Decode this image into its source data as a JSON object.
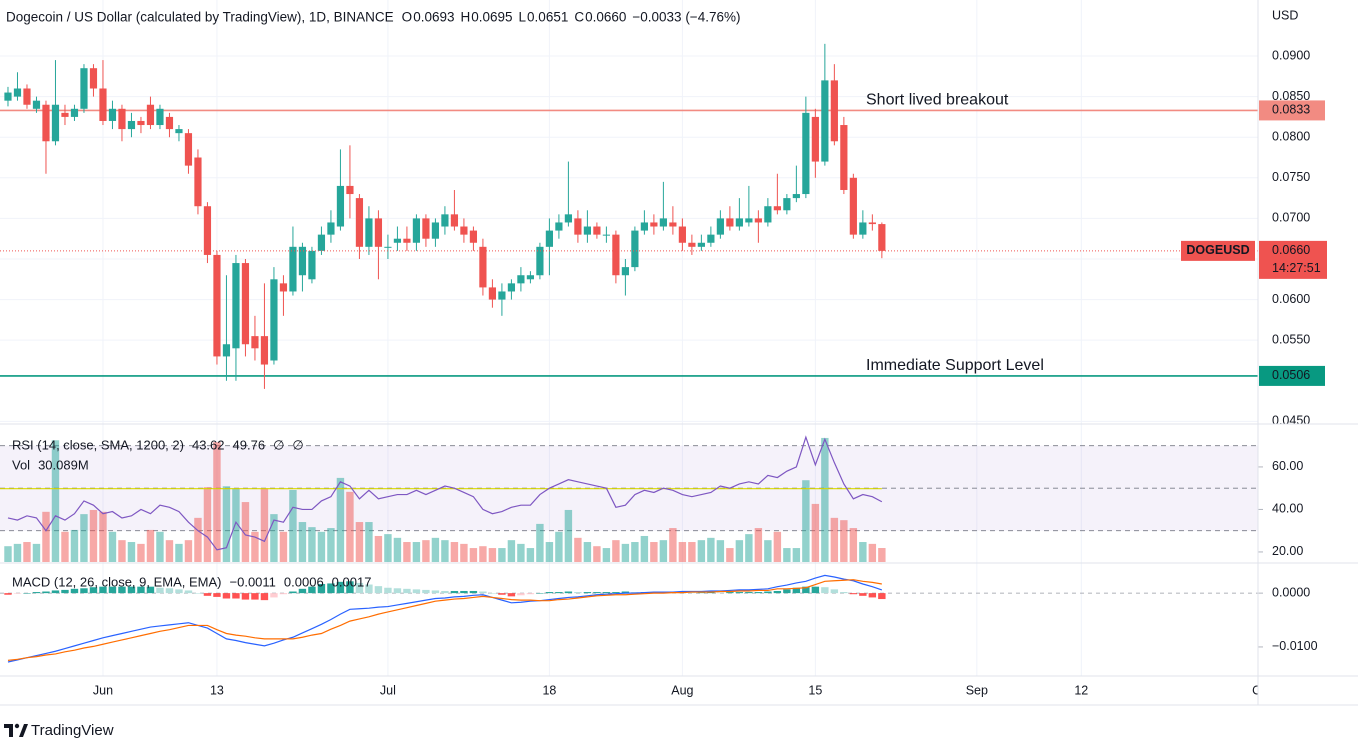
{
  "header": {
    "title": "Dogecoin / US Dollar (calculated by TradingView), 1D, BINANCE",
    "o": "O",
    "o_value": "0.0693",
    "h": "H",
    "h_value": "0.0695",
    "l": "L",
    "l_value": "0.0651",
    "c": "C",
    "c_value": "0.0660",
    "change": "−0.0033 (−4.76%)"
  },
  "logo": "TradingView",
  "chart_data": {
    "type": "candlestick",
    "currency": "USD",
    "x": [
      "May 22",
      "May 23",
      "May 24",
      "May 25",
      "May 26",
      "May 27",
      "May 28",
      "May 29",
      "May 30",
      "May 31",
      "Jun 1",
      "Jun 2",
      "Jun 3",
      "Jun 4",
      "Jun 5",
      "Jun 6",
      "Jun 7",
      "Jun 8",
      "Jun 9",
      "Jun 10",
      "Jun 11",
      "Jun 12",
      "Jun 13",
      "Jun 14",
      "Jun 15",
      "Jun 16",
      "Jun 17",
      "Jun 18",
      "Jun 19",
      "Jun 20",
      "Jun 21",
      "Jun 22",
      "Jun 23",
      "Jun 24",
      "Jun 25",
      "Jun 26",
      "Jun 27",
      "Jun 28",
      "Jun 29",
      "Jun 30",
      "Jul 1",
      "Jul 2",
      "Jul 3",
      "Jul 4",
      "Jul 5",
      "Jul 6",
      "Jul 7",
      "Jul 8",
      "Jul 9",
      "Jul 10",
      "Jul 11",
      "Jul 12",
      "Jul 13",
      "Jul 14",
      "Jul 15",
      "Jul 16",
      "Jul 17",
      "Jul 18",
      "Jul 19",
      "Jul 20",
      "Jul 21",
      "Jul 22",
      "Jul 23",
      "Jul 24",
      "Jul 25",
      "Jul 26",
      "Jul 27",
      "Jul 28",
      "Jul 29",
      "Jul 30",
      "Jul 31",
      "Aug 1",
      "Aug 2",
      "Aug 3",
      "Aug 4",
      "Aug 5",
      "Aug 6",
      "Aug 7",
      "Aug 8",
      "Aug 9",
      "Aug 10",
      "Aug 11",
      "Aug 12",
      "Aug 13",
      "Aug 14",
      "Aug 15",
      "Aug 16",
      "Aug 17",
      "Aug 18",
      "Aug 19",
      "Aug 20",
      "Aug 21",
      "Aug 22"
    ],
    "open": [
      0.0845,
      0.085,
      0.086,
      0.0835,
      0.084,
      0.0795,
      0.083,
      0.0825,
      0.0835,
      0.0885,
      0.086,
      0.082,
      0.0835,
      0.081,
      0.082,
      0.084,
      0.0815,
      0.0825,
      0.0805,
      0.0805,
      0.0775,
      0.0715,
      0.0655,
      0.053,
      0.054,
      0.0645,
      0.0555,
      0.0555,
      0.0525,
      0.062,
      0.061,
      0.063,
      0.0625,
      0.066,
      0.068,
      0.069,
      0.074,
      0.0725,
      0.0665,
      0.07,
      0.0665,
      0.067,
      0.0675,
      0.067,
      0.07,
      0.0675,
      0.069,
      0.0705,
      0.069,
      0.0685,
      0.0665,
      0.0615,
      0.06,
      0.061,
      0.062,
      0.0625,
      0.063,
      0.0665,
      0.0685,
      0.0695,
      0.07,
      0.068,
      0.069,
      0.068,
      0.068,
      0.063,
      0.064,
      0.0685,
      0.0695,
      0.069,
      0.0695,
      0.069,
      0.067,
      0.0665,
      0.067,
      0.068,
      0.07,
      0.069,
      0.0695,
      0.07,
      0.0695,
      0.0715,
      0.071,
      0.0725,
      0.073,
      0.0825,
      0.077,
      0.087,
      0.0815,
      0.075,
      0.068,
      0.0695,
      0.0693
    ],
    "high": [
      0.0862,
      0.088,
      0.0865,
      0.085,
      0.0845,
      0.0895,
      0.084,
      0.084,
      0.089,
      0.089,
      0.0895,
      0.0845,
      0.084,
      0.083,
      0.0825,
      0.085,
      0.084,
      0.083,
      0.0815,
      0.081,
      0.0785,
      0.072,
      0.066,
      0.063,
      0.0655,
      0.065,
      0.058,
      0.062,
      0.064,
      0.063,
      0.069,
      0.067,
      0.0665,
      0.069,
      0.071,
      0.0785,
      0.079,
      0.073,
      0.0715,
      0.071,
      0.068,
      0.069,
      0.069,
      0.0705,
      0.0705,
      0.07,
      0.0715,
      0.0735,
      0.07,
      0.069,
      0.0675,
      0.0625,
      0.062,
      0.0625,
      0.064,
      0.0635,
      0.067,
      0.07,
      0.0705,
      0.077,
      0.071,
      0.071,
      0.0695,
      0.069,
      0.0685,
      0.065,
      0.069,
      0.071,
      0.0705,
      0.0745,
      0.0715,
      0.07,
      0.068,
      0.068,
      0.069,
      0.071,
      0.0715,
      0.0725,
      0.074,
      0.071,
      0.0725,
      0.0755,
      0.073,
      0.0765,
      0.085,
      0.0835,
      0.0915,
      0.089,
      0.0825,
      0.0755,
      0.071,
      0.0705,
      0.0695
    ],
    "low": [
      0.0838,
      0.0845,
      0.0835,
      0.083,
      0.0755,
      0.079,
      0.0815,
      0.082,
      0.083,
      0.085,
      0.0815,
      0.081,
      0.0795,
      0.08,
      0.0805,
      0.081,
      0.081,
      0.08,
      0.0795,
      0.0755,
      0.0705,
      0.0645,
      0.052,
      0.05,
      0.05,
      0.053,
      0.0525,
      0.049,
      0.052,
      0.058,
      0.0605,
      0.061,
      0.062,
      0.0655,
      0.067,
      0.0685,
      0.07,
      0.065,
      0.0655,
      0.0625,
      0.065,
      0.066,
      0.066,
      0.066,
      0.0665,
      0.0665,
      0.068,
      0.0685,
      0.067,
      0.066,
      0.0605,
      0.059,
      0.058,
      0.06,
      0.061,
      0.062,
      0.0625,
      0.063,
      0.0675,
      0.069,
      0.067,
      0.067,
      0.0675,
      0.067,
      0.062,
      0.0605,
      0.0635,
      0.068,
      0.068,
      0.0685,
      0.068,
      0.066,
      0.0655,
      0.066,
      0.0665,
      0.0675,
      0.0685,
      0.0685,
      0.069,
      0.067,
      0.069,
      0.0705,
      0.0705,
      0.072,
      0.0725,
      0.075,
      0.0765,
      0.079,
      0.073,
      0.0675,
      0.0675,
      0.0685,
      0.0651
    ],
    "close": [
      0.0855,
      0.086,
      0.084,
      0.0845,
      0.0795,
      0.084,
      0.0825,
      0.0835,
      0.0885,
      0.086,
      0.082,
      0.0835,
      0.081,
      0.082,
      0.0815,
      0.0815,
      0.0835,
      0.081,
      0.081,
      0.0765,
      0.0715,
      0.0655,
      0.053,
      0.0545,
      0.0645,
      0.0545,
      0.054,
      0.052,
      0.0625,
      0.061,
      0.0665,
      0.0665,
      0.066,
      0.068,
      0.0695,
      0.074,
      0.073,
      0.0665,
      0.07,
      0.0665,
      0.0665,
      0.0675,
      0.067,
      0.07,
      0.0675,
      0.0695,
      0.0705,
      0.069,
      0.068,
      0.067,
      0.0615,
      0.06,
      0.061,
      0.062,
      0.063,
      0.063,
      0.0665,
      0.0685,
      0.0695,
      0.0705,
      0.068,
      0.069,
      0.068,
      0.068,
      0.063,
      0.064,
      0.0685,
      0.0695,
      0.069,
      0.07,
      0.069,
      0.067,
      0.0665,
      0.067,
      0.068,
      0.07,
      0.069,
      0.07,
      0.07,
      0.0695,
      0.0715,
      0.071,
      0.0725,
      0.073,
      0.083,
      0.077,
      0.087,
      0.0795,
      0.0735,
      0.068,
      0.0695,
      0.0693,
      0.066
    ],
    "up_color": "#26a69a",
    "down_color": "#ef5350",
    "xlim": [
      -0.84,
      131.6
    ],
    "xticks": [
      {
        "value": 10,
        "label": "Jun"
      },
      {
        "value": 22,
        "label": "13"
      },
      {
        "value": 40,
        "label": "Jul"
      },
      {
        "value": 57,
        "label": "18"
      },
      {
        "value": 71,
        "label": "Aug"
      },
      {
        "value": 85,
        "label": "15"
      },
      {
        "value": 102,
        "label": "Sep"
      },
      {
        "value": 113,
        "label": "12"
      },
      {
        "value": 132,
        "label": "Oct"
      }
    ],
    "ylim": [
      0.0448,
      0.0969
    ],
    "yticks": [
      {
        "value": 0.045,
        "label": "0.0450"
      },
      {
        "value": 0.055,
        "label": "0.0550"
      },
      {
        "value": 0.06,
        "label": "0.0600"
      },
      {
        "value": 0.065,
        "label": "0.0650"
      },
      {
        "value": 0.07,
        "label": "0.0700"
      },
      {
        "value": 0.075,
        "label": "0.0750"
      },
      {
        "value": 0.08,
        "label": "0.0800"
      },
      {
        "value": 0.085,
        "label": "0.0850"
      },
      {
        "value": 0.09,
        "label": "0.0900"
      }
    ],
    "grid": true,
    "last_price": {
      "value": 0.066,
      "label": "0.0660",
      "symbol": "DOGEUSD",
      "countdown": "14:27:51",
      "color": "#ef5350"
    },
    "levels": [
      {
        "value": 0.0833,
        "label": "0.0833",
        "text": "Short lived breakout",
        "color": "#f28b82",
        "text_color": "#f23645"
      },
      {
        "value": 0.0506,
        "label": "0.0506",
        "text": "Immediate Support Level",
        "color": "#089981",
        "text_color": "#089981"
      }
    ],
    "volume": {
      "name": "Vol",
      "value_label": "30.089M",
      "ylim": [
        0,
        297
      ],
      "values": [
        34,
        39,
        43,
        39,
        108,
        262,
        65,
        69,
        103,
        112,
        108,
        65,
        47,
        43,
        39,
        69,
        65,
        47,
        39,
        47,
        95,
        161,
        258,
        163,
        159,
        129,
        65,
        159,
        103,
        65,
        155,
        86,
        75,
        65,
        73,
        181,
        151,
        86,
        86,
        56,
        60,
        52,
        43,
        43,
        47,
        52,
        47,
        43,
        39,
        30,
        34,
        30,
        30,
        47,
        39,
        30,
        82,
        43,
        65,
        112,
        52,
        43,
        34,
        30,
        47,
        39,
        43,
        56,
        43,
        47,
        73,
        43,
        43,
        47,
        52,
        47,
        30,
        47,
        60,
        73,
        47,
        65,
        30,
        30,
        176,
        125,
        267,
        95,
        90,
        73,
        43,
        39,
        30.089
      ]
    },
    "rsi": {
      "name": "RSI (14, close, SMA, 1200, 2)",
      "value_label": "43.62",
      "sma_label": "49.76",
      "sma": 49.76,
      "extra": [
        "∅",
        "∅"
      ],
      "color": "#7e57c2",
      "sma_color": "#d8d800",
      "ylim": [
        14.8,
        80.2
      ],
      "yticks": [
        {
          "value": 20,
          "label": "20.00"
        },
        {
          "value": 40,
          "label": "40.00"
        },
        {
          "value": 60,
          "label": "60.00"
        }
      ],
      "levels": [
        30,
        50,
        70
      ],
      "values": [
        36,
        35,
        37,
        36,
        30,
        37,
        35,
        38,
        44,
        42,
        38,
        39,
        36,
        37,
        40,
        38,
        42,
        41,
        39,
        34,
        30,
        27,
        21,
        22,
        34,
        28,
        27,
        25,
        35,
        34,
        41,
        40,
        40,
        44,
        46,
        53,
        51,
        45,
        49,
        45,
        46,
        47,
        47,
        49,
        47,
        49,
        51,
        50,
        48,
        46,
        40,
        38,
        39,
        41,
        42,
        42,
        47,
        50,
        52,
        54,
        53,
        52,
        51,
        50,
        41,
        42,
        47,
        49,
        48,
        50,
        49,
        47,
        46,
        47,
        48,
        51,
        50,
        52,
        53,
        52,
        56,
        55,
        58,
        60,
        74,
        61,
        73,
        62,
        52,
        45,
        47,
        46,
        43.62
      ]
    },
    "macd": {
      "name": "MACD (12, 26, close, 9, EMA, EMA)",
      "hist_label": "−0.0011",
      "macd_label": "0.0006",
      "signal_label": "0.0017",
      "macd_color": "#2962ff",
      "signal_color": "#ff6d00",
      "ylim": [
        -0.0154,
        0.0056
      ],
      "yticks": [
        {
          "value": -0.01,
          "label": "−0.0100"
        },
        {
          "value": 0,
          "label": "0.0000"
        }
      ],
      "macd": [
        -0.0128,
        -0.0124,
        -0.012,
        -0.0116,
        -0.0112,
        -0.0108,
        -0.0103,
        -0.0098,
        -0.0093,
        -0.0088,
        -0.0083,
        -0.0079,
        -0.0075,
        -0.0071,
        -0.0067,
        -0.0063,
        -0.0061,
        -0.0059,
        -0.0057,
        -0.0055,
        -0.006,
        -0.0065,
        -0.0075,
        -0.0085,
        -0.0088,
        -0.0092,
        -0.0095,
        -0.0098,
        -0.0093,
        -0.0087,
        -0.0082,
        -0.0074,
        -0.0066,
        -0.0058,
        -0.0049,
        -0.0039,
        -0.003,
        -0.0029,
        -0.0028,
        -0.0026,
        -0.0025,
        -0.0022,
        -0.0019,
        -0.0016,
        -0.0013,
        -0.001,
        -0.0009,
        -0.0007,
        -0.0006,
        -0.0004,
        -0.0003,
        -0.0008,
        -0.0013,
        -0.0018,
        -0.0017,
        -0.0015,
        -0.0014,
        -0.0012,
        -0.001,
        -0.0008,
        -0.0007,
        -0.0005,
        -0.0003,
        -0.0002,
        -0.0001,
        0.0,
        0.0,
        0.0001,
        0.0002,
        0.0002,
        0.0002,
        0.0003,
        0.0003,
        0.0003,
        0.0004,
        0.0004,
        0.0005,
        0.0006,
        0.0006,
        0.0007,
        0.0008,
        0.0012,
        0.0015,
        0.0019,
        0.0022,
        0.0028,
        0.0033,
        0.003,
        0.0026,
        0.0023,
        0.0017,
        0.0012,
        0.0006
      ],
      "signal": [
        -0.0125,
        -0.0123,
        -0.012,
        -0.0118,
        -0.0115,
        -0.0113,
        -0.0109,
        -0.0106,
        -0.0102,
        -0.0099,
        -0.0095,
        -0.0091,
        -0.0087,
        -0.0083,
        -0.0079,
        -0.0075,
        -0.0071,
        -0.0068,
        -0.0064,
        -0.006,
        -0.006,
        -0.006,
        -0.0068,
        -0.0075,
        -0.0078,
        -0.008,
        -0.0083,
        -0.0085,
        -0.0085,
        -0.0085,
        -0.0085,
        -0.0082,
        -0.0078,
        -0.0075,
        -0.0067,
        -0.006,
        -0.0052,
        -0.0048,
        -0.0044,
        -0.0039,
        -0.0035,
        -0.0031,
        -0.0027,
        -0.0023,
        -0.0019,
        -0.0015,
        -0.0013,
        -0.0011,
        -0.001,
        -0.0008,
        -0.0006,
        -0.0008,
        -0.001,
        -0.0012,
        -0.0013,
        -0.0013,
        -0.0014,
        -0.0014,
        -0.0012,
        -0.0011,
        -0.0009,
        -0.0007,
        -0.0005,
        -0.0004,
        -0.0003,
        -0.0003,
        -0.0002,
        -0.0001,
        0.0,
        0.0,
        0.0001,
        0.0001,
        0.0002,
        0.0002,
        0.0002,
        0.0003,
        0.0003,
        0.0004,
        0.0004,
        0.0005,
        0.0005,
        0.0008,
        0.0008,
        0.0009,
        0.001,
        0.0016,
        0.0022,
        0.0023,
        0.0024,
        0.0025,
        0.0022,
        0.002,
        0.0017
      ],
      "histogram": [
        -0.0003,
        -0.0001,
        0.0,
        0.0002,
        0.0003,
        0.0005,
        0.0006,
        0.0008,
        0.0009,
        0.0011,
        0.0012,
        0.0012,
        0.0012,
        0.0012,
        0.0012,
        0.0012,
        0.001,
        0.0009,
        0.0007,
        0.0005,
        0.0,
        -0.0005,
        -0.0007,
        -0.001,
        -0.001,
        -0.0012,
        -0.0012,
        -0.0013,
        -0.0008,
        -0.0002,
        0.0003,
        0.0008,
        0.0012,
        0.0017,
        0.0018,
        0.0021,
        0.0022,
        0.0019,
        0.0016,
        0.0013,
        0.001,
        0.0009,
        0.0008,
        0.0007,
        0.0006,
        0.0005,
        0.0004,
        0.0004,
        0.0004,
        0.0004,
        0.0003,
        0.0,
        -0.0003,
        -0.0006,
        -0.0004,
        -0.0002,
        0.0,
        0.0002,
        0.0002,
        0.0003,
        0.0002,
        0.0002,
        0.0002,
        0.0002,
        0.0002,
        0.0003,
        0.0002,
        0.0002,
        0.0002,
        0.0002,
        0.0001,
        0.0002,
        0.0001,
        0.0001,
        0.0002,
        0.0001,
        0.0002,
        0.0002,
        0.0002,
        0.0002,
        0.0003,
        0.0004,
        0.0007,
        0.001,
        0.0012,
        0.0012,
        0.0011,
        0.0007,
        0.0002,
        -0.0002,
        -0.0005,
        -0.0008,
        -0.0011
      ],
      "hist_colors": {
        "up_rising": "#26a69a",
        "up_falling": "#b2dfdb",
        "down_falling": "#ff5252",
        "down_rising": "#ffcdd2"
      }
    }
  }
}
